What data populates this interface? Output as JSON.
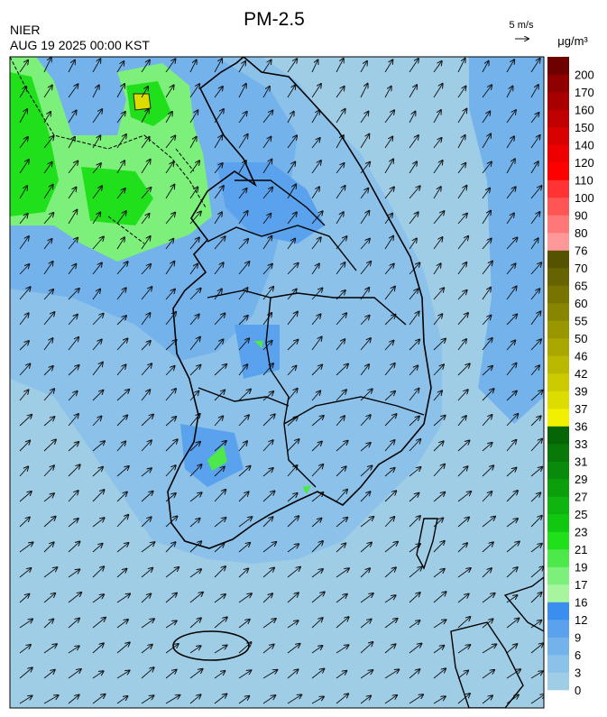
{
  "header": {
    "title": "PM-2.5",
    "agency": "NIER",
    "datetime": "AUG 19 2025 00:00 KST",
    "wind_scale": "5 m/s"
  },
  "colorbar": {
    "unit": "μg/m³",
    "labels": [
      0,
      3,
      6,
      9,
      12,
      16,
      17,
      19,
      21,
      23,
      25,
      27,
      29,
      31,
      33,
      36,
      37,
      39,
      42,
      46,
      50,
      55,
      60,
      65,
      70,
      76,
      80,
      90,
      100,
      110,
      120,
      140,
      150,
      160,
      170,
      200
    ],
    "colors": [
      "#9fcde6",
      "#8cc2ea",
      "#74b2eb",
      "#5aa2ed",
      "#3a8ef0",
      "#a8f5a0",
      "#7cf07a",
      "#4de84a",
      "#1fe01b",
      "#10c810",
      "#0fb40f",
      "#0c9f0c",
      "#0a8a0a",
      "#087808",
      "#066606",
      "#f0f000",
      "#dcdc00",
      "#ccca00",
      "#bbb800",
      "#aaa800",
      "#999700",
      "#888600",
      "#777500",
      "#666400",
      "#555300",
      "#ff9999",
      "#ff7777",
      "#ff5555",
      "#ff3333",
      "#ff0000",
      "#ee0000",
      "#d80000",
      "#c00000",
      "#a80000",
      "#900000",
      "#6e0000"
    ]
  }
}
